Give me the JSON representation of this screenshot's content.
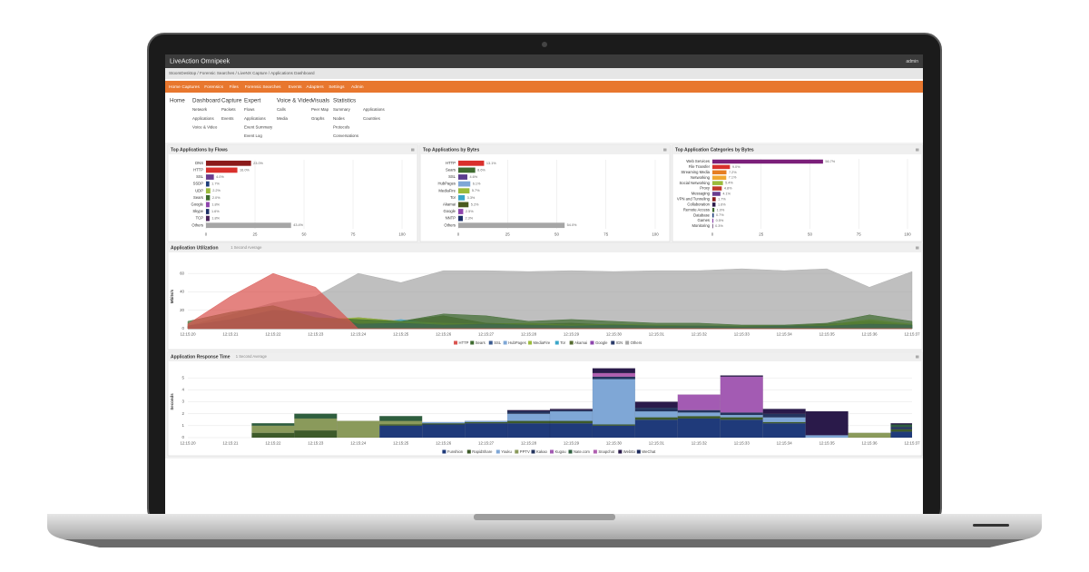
{
  "app": {
    "logo": "LiveAction Omnipeek",
    "user": "admin",
    "breadcrumb": "StoomDesktop / Forensic Searches / LiveNX Capture / Applications Dashboard",
    "nav": [
      "Home",
      "Captures",
      "Forensics",
      "Files",
      "Forensic Searches",
      "Events",
      "Adapters",
      "Settings",
      "Admin"
    ],
    "menu": [
      {
        "title": "Home"
      },
      {
        "title": "Dashboard",
        "items": [
          "Network",
          "Applications",
          "Voice & Video"
        ]
      },
      {
        "title": "Capture",
        "items": [
          "Packets",
          "Events"
        ]
      },
      {
        "title": "Expert",
        "items": [
          "Flows",
          "Applications",
          "Event Summary",
          "Event Log"
        ]
      },
      {
        "title": "Voice & Video",
        "items": [
          "Calls",
          "Media"
        ]
      },
      {
        "title": "Visuals",
        "items": [
          "Peer Map",
          "Graphs"
        ]
      },
      {
        "title": "Statistics",
        "items": [
          "Summary",
          "Nodes",
          "Protocols",
          "Conversations",
          "Applications",
          "Countries"
        ]
      }
    ]
  },
  "chart_data": [
    {
      "type": "hbar",
      "title": "Top Applications by Flows",
      "categories": [
        "DNS",
        "HTTP",
        "SSL",
        "SSDP",
        "UDP",
        "Sears",
        "Google",
        "Skype",
        "TCP",
        "Others"
      ],
      "values": [
        23.0,
        16.0,
        4.0,
        1.7,
        2.2,
        2.0,
        1.8,
        1.6,
        1.8,
        43.4
      ],
      "value_labels": [
        "23.0%",
        "16.0%",
        "4.0%",
        "1.7%",
        "2.2%",
        "2.0%",
        "1.8%",
        "1.6%",
        "1.8%",
        "43.4%"
      ],
      "colors": [
        "#8b1a1a",
        "#d9302c",
        "#6a3d8f",
        "#1f3f7a",
        "#9bbb3b",
        "#3e6b2f",
        "#8e44ad",
        "#1c2f66",
        "#4a235a",
        "#a6a6a6"
      ],
      "xlim": [
        0,
        100
      ],
      "xticks": [
        0,
        25,
        50,
        75,
        100
      ],
      "grid": true
    },
    {
      "type": "hbar",
      "title": "Top Applications by Bytes",
      "categories": [
        "HTTP",
        "Sears",
        "SSL",
        "HubPages",
        "MediaFire",
        "Tor",
        "Akamai",
        "Google",
        "NNTP",
        "Others"
      ],
      "values": [
        13.1,
        8.6,
        4.6,
        6.1,
        5.7,
        3.3,
        5.2,
        2.5,
        2.3,
        54.0
      ],
      "value_labels": [
        "13.1%",
        "8.6%",
        "4.6%",
        "6.1%",
        "5.7%",
        "3.3%",
        "5.2%",
        "2.5%",
        "2.3%",
        "54.0%"
      ],
      "colors": [
        "#d9302c",
        "#3e6b2f",
        "#5b3d8f",
        "#7fa7d6",
        "#9bbb3b",
        "#3aa6c8",
        "#4a5a1f",
        "#8e44ad",
        "#1c2f66",
        "#a6a6a6"
      ],
      "xlim": [
        0,
        100
      ],
      "xticks": [
        0,
        25,
        50,
        75,
        100
      ],
      "grid": true
    },
    {
      "type": "hbar",
      "title": "Top Application Categories by Bytes",
      "categories": [
        "Web Services",
        "File Transfer",
        "Streaming Media",
        "Networking",
        "Social Networking",
        "Proxy",
        "Messaging",
        "VPN and Tunneling",
        "Collaboration",
        "Remote Access",
        "Database",
        "Games",
        "Monitoring"
      ],
      "values": [
        56.7,
        9.0,
        7.2,
        7.1,
        5.4,
        4.8,
        4.1,
        1.7,
        1.6,
        1.0,
        0.7,
        0.5,
        0.3
      ],
      "value_labels": [
        "56.7%",
        "9.0%",
        "7.2%",
        "7.1%",
        "5.4%",
        "4.8%",
        "4.1%",
        "1.7%",
        "1.6%",
        "1.0%",
        "0.7%",
        "0.5%",
        "0.3%"
      ],
      "colors": [
        "#7b1f7a",
        "#d9302c",
        "#e67e22",
        "#f0a830",
        "#9bbb3b",
        "#c0392b",
        "#6a3d8f",
        "#8b1a1a",
        "#2c1a4a",
        "#3e6b2f",
        "#1f3f7a",
        "#8e44ad",
        "#4a235a"
      ],
      "xlim": [
        0,
        100
      ],
      "xticks": [
        0,
        25,
        50,
        75,
        100
      ],
      "grid": true
    },
    {
      "type": "area",
      "title": "Application Utilization",
      "subtitle": "1 Second Average",
      "y_label": "Mbits/s",
      "x": [
        "12:15:20",
        "12:15:21",
        "12:15:22",
        "12:15:23",
        "12:15:24",
        "12:15:25",
        "12:15:26",
        "12:15:27",
        "12:15:28",
        "12:15:29",
        "12:15:30",
        "12:15:31",
        "12:15:32",
        "12:15:33",
        "12:15:34",
        "12:15:35",
        "12:15:36",
        "12:15:37"
      ],
      "series": [
        {
          "name": "HTTP",
          "color": "#d9534f",
          "values": [
            5,
            35,
            60,
            45,
            0,
            0,
            0,
            0,
            0,
            0,
            0,
            0,
            0,
            0,
            0,
            0,
            0,
            0
          ]
        },
        {
          "name": "Sears",
          "color": "#3e6b2f",
          "values": [
            8,
            18,
            25,
            12,
            10,
            8,
            16,
            14,
            8,
            10,
            8,
            6,
            6,
            4,
            4,
            6,
            15,
            8
          ]
        },
        {
          "name": "SSL",
          "color": "#3a5a8f",
          "values": [
            3,
            10,
            20,
            18,
            5,
            6,
            4,
            5,
            4,
            3,
            4,
            3,
            3,
            2,
            3,
            3,
            5,
            4
          ]
        },
        {
          "name": "HubPages",
          "color": "#7fa7d6",
          "values": [
            2,
            6,
            10,
            8,
            4,
            5,
            3,
            4,
            3,
            3,
            3,
            2,
            2,
            2,
            2,
            2,
            4,
            3
          ]
        },
        {
          "name": "MediaFire",
          "color": "#9bbb3b",
          "values": [
            0,
            4,
            8,
            10,
            12,
            8,
            6,
            5,
            6,
            4,
            5,
            4,
            3,
            3,
            3,
            4,
            10,
            5
          ]
        },
        {
          "name": "Tor",
          "color": "#3aa6c8",
          "values": [
            0,
            2,
            4,
            3,
            3,
            10,
            4,
            3,
            2,
            2,
            2,
            2,
            2,
            2,
            2,
            2,
            3,
            2
          ]
        },
        {
          "name": "Akamai",
          "color": "#556b2f",
          "values": [
            0,
            2,
            3,
            4,
            12,
            8,
            14,
            6,
            5,
            6,
            4,
            3,
            3,
            3,
            3,
            5,
            8,
            4
          ]
        },
        {
          "name": "Google",
          "color": "#8e44ad",
          "values": [
            0,
            2,
            3,
            2,
            2,
            2,
            2,
            2,
            2,
            1,
            1,
            1,
            1,
            1,
            1,
            1,
            2,
            1
          ]
        },
        {
          "name": "IGN",
          "color": "#2a3a6a",
          "values": [
            0,
            1,
            2,
            2,
            1,
            1,
            1,
            1,
            1,
            1,
            1,
            1,
            1,
            1,
            1,
            1,
            1,
            1
          ]
        },
        {
          "name": "Others",
          "color": "#a6a6a6",
          "values": [
            3,
            15,
            28,
            35,
            60,
            50,
            63,
            63,
            62,
            63,
            62,
            63,
            63,
            65,
            63,
            65,
            45,
            62
          ]
        }
      ],
      "ylim": [
        0,
        70
      ],
      "yticks": [
        0,
        20,
        40,
        60
      ],
      "grid": true
    },
    {
      "type": "stacked_bar",
      "title": "Application Response Time",
      "subtitle": "1 Second Average",
      "y_label": "Seconds",
      "x": [
        "12:15:20",
        "12:15:21",
        "12:15:22",
        "12:15:23",
        "12:15:24",
        "12:15:25",
        "12:15:26",
        "12:15:27",
        "12:15:28",
        "12:15:29",
        "12:15:30",
        "12:15:31",
        "12:15:32",
        "12:15:33",
        "12:15:34",
        "12:15:35",
        "12:15:36",
        "12:15:37"
      ],
      "series": [
        {
          "name": "Funshion",
          "color": "#1f3a7a",
          "values": [
            0,
            0,
            0,
            0,
            0,
            1.0,
            1.1,
            1.2,
            1.2,
            1.2,
            1.0,
            1.5,
            1.6,
            1.5,
            1.2,
            0,
            0,
            0.5
          ]
        },
        {
          "name": "RapidShare",
          "color": "#3d5a2a",
          "values": [
            0,
            0,
            0.4,
            0.6,
            0,
            0.1,
            0.1,
            0.1,
            0.2,
            0.2,
            0.1,
            0.2,
            0.2,
            0.2,
            0.1,
            0,
            0,
            0.2
          ]
        },
        {
          "name": "Youku",
          "color": "#7fa7d6",
          "values": [
            0,
            0,
            0,
            0,
            0,
            0,
            0.1,
            0.1,
            0.6,
            0.8,
            3.8,
            0.5,
            0.3,
            0.2,
            0.4,
            0.2,
            0,
            0
          ]
        },
        {
          "name": "PPTV",
          "color": "#8a9a5b",
          "values": [
            0,
            0,
            0.6,
            1.0,
            1.4,
            0.3,
            0,
            0,
            0,
            0,
            0,
            0,
            0,
            0,
            0,
            0,
            0.4,
            0
          ]
        },
        {
          "name": "Kakao",
          "color": "#24345e",
          "values": [
            0,
            0,
            0,
            0,
            0,
            0,
            0,
            0,
            0.2,
            0.1,
            0.2,
            0.3,
            0.2,
            0.2,
            0.3,
            0,
            0,
            0.2
          ]
        },
        {
          "name": "Kugou",
          "color": "#a35bb3",
          "values": [
            0,
            0,
            0,
            0,
            0,
            0,
            0,
            0,
            0,
            0,
            0,
            0,
            1.3,
            3.0,
            0,
            0,
            0,
            0
          ]
        },
        {
          "name": "Nate.com",
          "color": "#2e5e3e",
          "values": [
            0,
            0,
            0.2,
            0.4,
            0,
            0.4,
            0,
            0,
            0,
            0,
            0,
            0,
            0,
            0,
            0,
            0,
            0,
            0.2
          ]
        },
        {
          "name": "Snapchat",
          "color": "#b05fb0",
          "values": [
            0,
            0,
            0,
            0,
            0,
            0,
            0,
            0,
            0,
            0,
            0.3,
            0,
            0,
            0,
            0,
            0,
            0,
            0
          ]
        },
        {
          "name": "WebEx",
          "color": "#2a1a4a",
          "values": [
            0,
            0,
            0,
            0,
            0,
            0,
            0,
            0,
            0.1,
            0.1,
            0.4,
            0.5,
            0,
            0.1,
            0.4,
            2.0,
            0,
            0.1
          ]
        },
        {
          "name": "WeChat",
          "color": "#1c2a5c",
          "values": [
            0,
            0,
            0,
            0,
            0,
            0,
            0,
            0,
            0,
            0,
            0,
            0,
            0,
            0,
            0,
            0,
            0,
            0
          ]
        }
      ],
      "ylim": [
        0,
        6
      ],
      "yticks": [
        0,
        1,
        2,
        3,
        4,
        5
      ],
      "grid": true
    }
  ]
}
